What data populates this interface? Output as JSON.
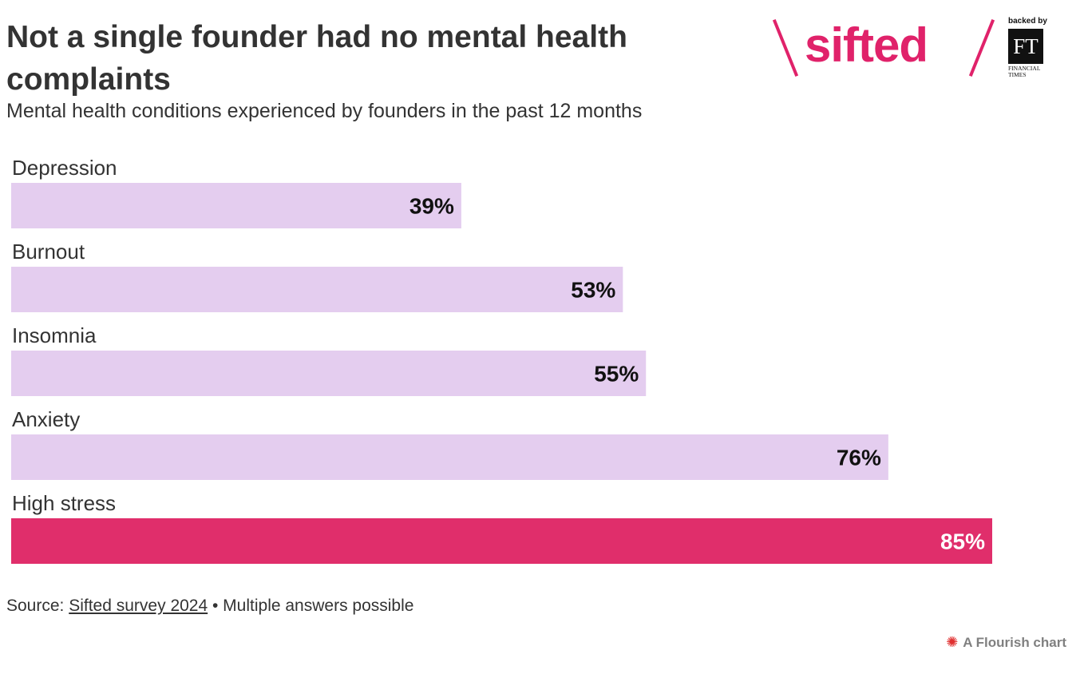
{
  "header": {
    "title": "Not a single founder had no mental health complaints",
    "subtitle": "Mental health conditions experienced by founders in the past 12 months"
  },
  "logo": {
    "wordmark": "sifted",
    "backed_by": "backed by",
    "ft_initials": "FT",
    "ft_name": "FINANCIAL TIMES",
    "brand_color": "#e0226a"
  },
  "chart_data": {
    "type": "bar",
    "orientation": "horizontal",
    "categories": [
      "Depression",
      "Burnout",
      "Insomnia",
      "Anxiety",
      "High stress"
    ],
    "values": [
      39,
      53,
      55,
      76,
      85
    ],
    "value_labels": [
      "39%",
      "53%",
      "55%",
      "76%",
      "85%"
    ],
    "xlim": [
      0,
      85
    ],
    "grid": false,
    "colors": {
      "default": "#e4cdef",
      "highlight": "#e02e6b",
      "highlight_category": "High stress"
    }
  },
  "footer": {
    "source_prefix": "Source: ",
    "source_link": "Sifted survey 2024",
    "source_suffix": " • Multiple answers possible",
    "credit": "A Flourish chart",
    "credit_icon": "flourish-burst-icon"
  }
}
